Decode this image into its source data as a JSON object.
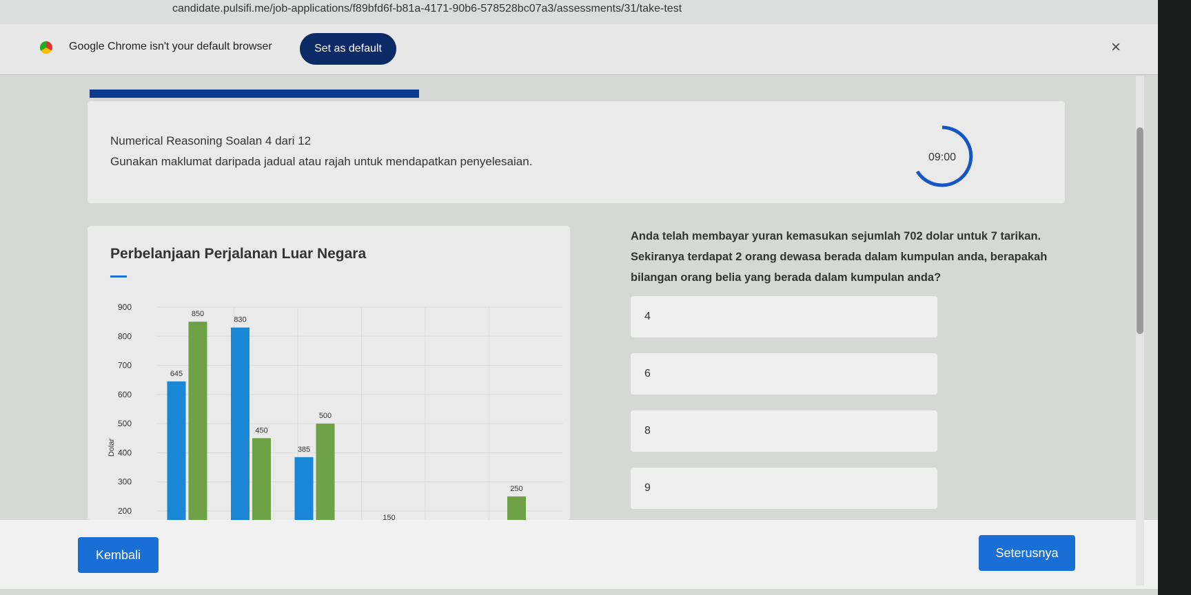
{
  "browser": {
    "url": "candidate.pulsifi.me/job-applications/f89bfd6f-b81a-4171-90b6-578528bc07a3/assessments/31/take-test",
    "banner": {
      "text": "Google Chrome isn't your default browser",
      "button": "Set as default",
      "close": "×"
    }
  },
  "question": {
    "heading": "Numerical Reasoning Soalan 4 dari 12",
    "instruction": "Gunakan maklumat daripada jadual atau rajah untuk mendapatkan penyelesaian.",
    "timer": "09:00",
    "text": "Anda telah membayar yuran kemasukan sejumlah 702 dolar untuk 7 tarikan. Sekiranya terdapat 2 orang dewasa berada dalam kumpulan anda, berapakah bilangan orang belia yang berada dalam kumpulan anda?",
    "options": [
      "4",
      "6",
      "8",
      "9"
    ]
  },
  "chart_data": {
    "type": "bar",
    "title": "Perbelanjaan Perjalanan Luar Negara",
    "y_label": "Dolar",
    "categories": [
      null,
      null,
      null,
      null,
      null,
      null
    ],
    "series": [
      {
        "color": "#1a86d6",
        "values": [
          645,
          830,
          385,
          null,
          null,
          null
        ]
      },
      {
        "color": "#6ea045",
        "values": [
          850,
          450,
          500,
          150,
          null,
          250
        ]
      }
    ],
    "ylim": [
      0,
      900
    ],
    "yticks": [
      200,
      300,
      400,
      500,
      600,
      700,
      800,
      900
    ],
    "grid": true
  },
  "footer": {
    "back": "Kembali",
    "next": "Seterusnya"
  }
}
